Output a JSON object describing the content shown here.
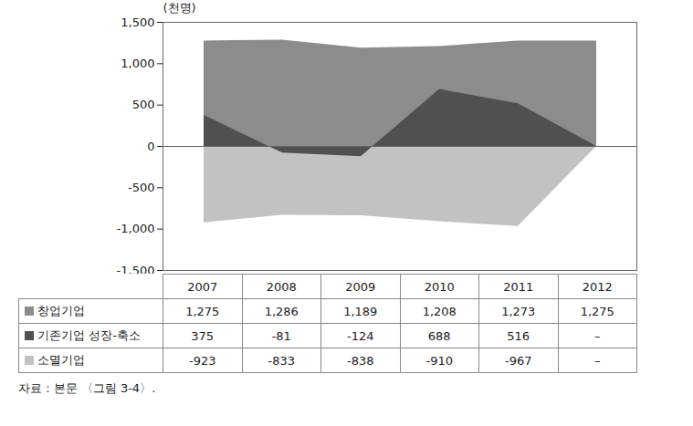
{
  "chart_data": {
    "type": "area",
    "y_label": "(천명)",
    "caption": "자료 : 본문 〈그림 3-4〉.",
    "categories": [
      "2007",
      "2008",
      "2009",
      "2010",
      "2011",
      "2012"
    ],
    "series": [
      {
        "name": "창업기업",
        "color": "#8c8c8c",
        "values": [
          1275,
          1286,
          1189,
          1208,
          1273,
          1275
        ],
        "value_labels": [
          "1,275",
          "1,286",
          "1,189",
          "1,208",
          "1,273",
          "1,275"
        ]
      },
      {
        "name": "기존기업 성장-축소",
        "color": "#505050",
        "values": [
          375,
          -81,
          -124,
          688,
          516,
          0
        ],
        "value_labels": [
          "375",
          "-81",
          "-124",
          "688",
          "516",
          "–"
        ]
      },
      {
        "name": "소멸기업",
        "color": "#c2c2c2",
        "values": [
          -923,
          -833,
          -838,
          -910,
          -967,
          0
        ],
        "value_labels": [
          "-923",
          "-833",
          "-838",
          "-910",
          "-967",
          "–"
        ]
      }
    ],
    "stacked": false,
    "tick_labels": "y",
    "ylim": [
      -1500,
      1500
    ],
    "yticks": [
      {
        "value": -1500,
        "label": "-1,500"
      },
      {
        "value": -1000,
        "label": "-1,000"
      },
      -500,
      0,
      500,
      {
        "value": 1000,
        "label": "1,000"
      },
      {
        "value": 1500,
        "label": "1,500"
      }
    ]
  }
}
